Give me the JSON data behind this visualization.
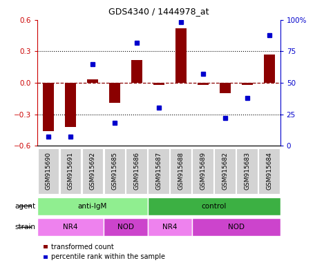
{
  "title": "GDS4340 / 1444978_at",
  "samples": [
    "GSM915690",
    "GSM915691",
    "GSM915692",
    "GSM915685",
    "GSM915686",
    "GSM915687",
    "GSM915688",
    "GSM915689",
    "GSM915682",
    "GSM915683",
    "GSM915684"
  ],
  "bar_values": [
    -0.46,
    -0.42,
    0.03,
    -0.19,
    0.22,
    -0.02,
    0.52,
    -0.02,
    -0.1,
    -0.02,
    0.27
  ],
  "scatter_values": [
    7,
    7,
    65,
    18,
    82,
    30,
    98,
    57,
    22,
    38,
    88
  ],
  "bar_color": "#8B0000",
  "scatter_color": "#0000CD",
  "ylim_left": [
    -0.6,
    0.6
  ],
  "ylim_right": [
    0,
    100
  ],
  "yticks_left": [
    -0.6,
    -0.3,
    0.0,
    0.3,
    0.6
  ],
  "yticks_right": [
    0,
    25,
    50,
    75,
    100
  ],
  "ytick_labels_right": [
    "0",
    "25",
    "50",
    "75",
    "100%"
  ],
  "dotted_lines": [
    -0.3,
    0.3
  ],
  "agent_groups": [
    {
      "label": "anti-IgM",
      "start": 0,
      "end": 5,
      "color": "#90EE90"
    },
    {
      "label": "control",
      "start": 5,
      "end": 11,
      "color": "#3CB043"
    }
  ],
  "strain_groups": [
    {
      "label": "NR4",
      "start": 0,
      "end": 3,
      "color": "#EE82EE"
    },
    {
      "label": "NOD",
      "start": 3,
      "end": 5,
      "color": "#CC44CC"
    },
    {
      "label": "NR4",
      "start": 5,
      "end": 7,
      "color": "#EE82EE"
    },
    {
      "label": "NOD",
      "start": 7,
      "end": 11,
      "color": "#CC44CC"
    }
  ],
  "legend_items": [
    {
      "label": "transformed count",
      "color": "#8B0000"
    },
    {
      "label": "percentile rank within the sample",
      "color": "#0000CD"
    }
  ],
  "agent_label": "agent",
  "strain_label": "strain",
  "tick_color_left": "#CC0000",
  "tick_color_right": "#0000CC",
  "bar_width": 0.5,
  "xticklabel_bg": "#D3D3D3",
  "xticklabel_fontsize": 6.5
}
